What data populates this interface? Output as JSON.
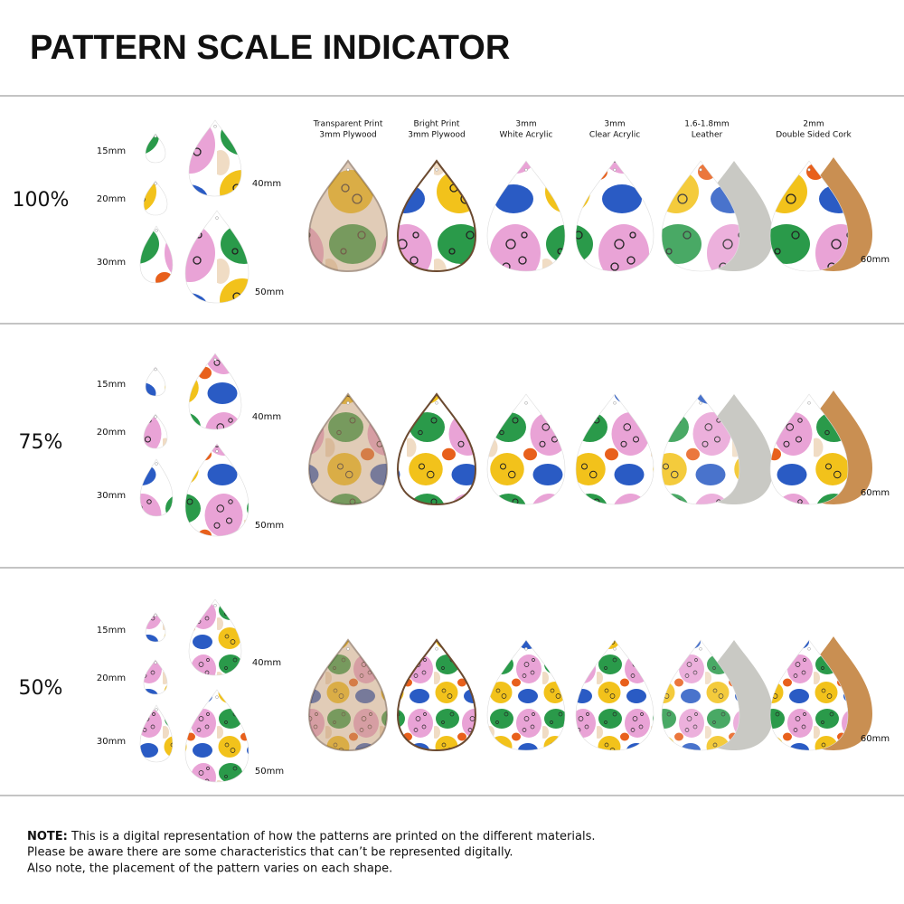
{
  "title": "PATTERN SCALE INDICATOR",
  "materials": [
    {
      "line1": "Transparent Print",
      "line2": "3mm Plywood"
    },
    {
      "line1": "Bright Print",
      "line2": "3mm Plywood"
    },
    {
      "line1": "3mm",
      "line2": "White Acrylic"
    },
    {
      "line1": "3mm",
      "line2": "Clear Acrylic"
    },
    {
      "line1": "1.6-1.8mm",
      "line2": "Leather"
    },
    {
      "line1": "2mm",
      "line2": "Double Sided Cork"
    }
  ],
  "sections": [
    {
      "scale": "100%",
      "sizes": [
        "15mm",
        "20mm",
        "30mm",
        "40mm",
        "50mm"
      ],
      "large_size": "60mm"
    },
    {
      "scale": "75%",
      "sizes": [
        "15mm",
        "20mm",
        "30mm",
        "40mm",
        "50mm"
      ],
      "large_size": "60mm"
    },
    {
      "scale": "50%",
      "sizes": [
        "15mm",
        "20mm",
        "30mm",
        "40mm",
        "50mm"
      ],
      "large_size": "60mm"
    }
  ],
  "note": {
    "label": "NOTE:",
    "lines": [
      " This is a digital representation of how the patterns are printed on the different materials.",
      "Please be aware there are some characteristics that can’t be represented digitally.",
      "Also note, the placement of the pattern varies on each shape."
    ]
  }
}
